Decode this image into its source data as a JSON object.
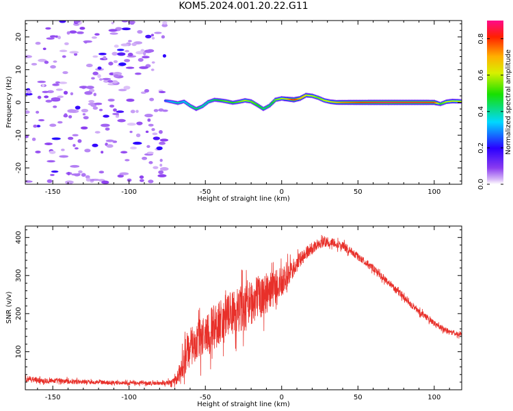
{
  "title": "KOM5.2024.001.20.22.G11",
  "colors": {
    "snr_line": "#e8302a",
    "axis": "#000000",
    "background": "#ffffff"
  },
  "chart_data": [
    {
      "type": "heatmap",
      "title": "KOM5.2024.001.20.22.G11",
      "xlabel": "Height of straight line (km)",
      "ylabel": "Frequency (Hz)",
      "xlim": [
        -168,
        118
      ],
      "ylim": [
        -25,
        25
      ],
      "x_ticks": [
        -150,
        -100,
        -50,
        0,
        50,
        100
      ],
      "y_ticks": [
        -20,
        -10,
        0,
        10,
        20
      ],
      "colorbar": {
        "label": "Normalized spectral amplitude",
        "range": [
          0,
          0.9
        ],
        "ticks": [
          0.0,
          0.2,
          0.4,
          0.6,
          0.8
        ],
        "colormap": "rainbow (purple to magenta)"
      },
      "noise_region": {
        "x_range": [
          -168,
          -76
        ],
        "amplitude": 0.05
      },
      "ridge": {
        "x": [
          -76,
          -72,
          -68,
          -64,
          -60,
          -56,
          -52,
          -48,
          -44,
          -40,
          -36,
          -32,
          -28,
          -24,
          -20,
          -16,
          -12,
          -8,
          -4,
          0,
          4,
          8,
          12,
          16,
          20,
          24,
          28,
          32,
          36,
          40,
          50,
          60,
          70,
          80,
          90,
          100,
          104,
          108,
          112,
          118
        ],
        "frequency": [
          0.5,
          0.2,
          -0.2,
          0.3,
          -1.0,
          -2.0,
          -1.2,
          0.2,
          0.8,
          0.6,
          0.3,
          -0.1,
          0.2,
          0.6,
          0.3,
          -0.8,
          -2.0,
          -1.0,
          0.8,
          1.2,
          1.0,
          0.8,
          1.2,
          2.2,
          2.0,
          1.4,
          0.6,
          0.2,
          0.0,
          0.0,
          0.0,
          0.0,
          0.0,
          0.0,
          0.0,
          0.0,
          -0.5,
          0.2,
          0.4,
          0.3
        ],
        "amplitude": [
          0.25,
          0.35,
          0.4,
          0.35,
          0.4,
          0.45,
          0.4,
          0.4,
          0.45,
          0.5,
          0.55,
          0.5,
          0.55,
          0.6,
          0.55,
          0.5,
          0.45,
          0.45,
          0.55,
          0.6,
          0.7,
          0.85,
          0.7,
          0.65,
          0.6,
          0.55,
          0.6,
          0.65,
          0.7,
          0.75,
          0.8,
          0.85,
          0.88,
          0.85,
          0.85,
          0.82,
          0.5,
          0.6,
          0.65,
          0.6
        ]
      }
    },
    {
      "type": "line",
      "xlabel": "Height of straight line (km)",
      "ylabel": "SNR (v/v)",
      "xlim": [
        -168,
        118
      ],
      "ylim": [
        0,
        430
      ],
      "x_ticks": [
        -150,
        -100,
        -50,
        0,
        50,
        100
      ],
      "y_ticks": [
        100,
        200,
        300,
        400
      ],
      "series": [
        {
          "x": [
            -168,
            -160,
            -150,
            -140,
            -130,
            -120,
            -110,
            -100,
            -90,
            -80,
            -75,
            -70,
            -66,
            -62,
            -58,
            -54,
            -50,
            -46,
            -42,
            -38,
            -34,
            -30,
            -26,
            -22,
            -18,
            -14,
            -10,
            -6,
            -2,
            0,
            2,
            6,
            10,
            14,
            18,
            22,
            26,
            30,
            35,
            40,
            45,
            50,
            55,
            60,
            65,
            70,
            75,
            80,
            85,
            90,
            95,
            100,
            105,
            110,
            114,
            118
          ],
          "y": [
            28,
            25,
            24,
            22,
            21,
            20,
            19,
            18,
            17,
            17,
            18,
            22,
            50,
            100,
            120,
            130,
            145,
            160,
            175,
            185,
            195,
            205,
            215,
            225,
            235,
            245,
            255,
            265,
            275,
            280,
            290,
            310,
            330,
            350,
            365,
            378,
            385,
            388,
            385,
            378,
            365,
            350,
            335,
            318,
            300,
            282,
            262,
            242,
            222,
            205,
            190,
            175,
            162,
            152,
            147,
            145
          ],
          "noise": [
            12,
            11,
            10,
            9,
            8,
            8,
            7,
            7,
            7,
            7,
            8,
            15,
            45,
            70,
            75,
            80,
            85,
            85,
            90,
            90,
            90,
            85,
            85,
            85,
            85,
            80,
            80,
            70,
            60,
            55,
            50,
            40,
            32,
            28,
            24,
            22,
            20,
            18,
            16,
            16,
            15,
            14,
            14,
            13,
            13,
            12,
            12,
            12,
            11,
            11,
            11,
            10,
            10,
            10,
            9,
            9
          ]
        }
      ]
    }
  ]
}
